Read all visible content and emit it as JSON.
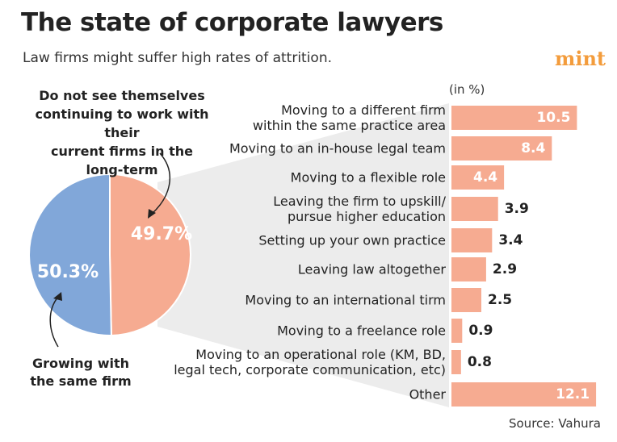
{
  "title": "The state of corporate lawyers",
  "subtitle": "Law firms might suffer high rates of attrition.",
  "logo": "mint",
  "source": "Source: Vahura",
  "chart_data": [
    {
      "type": "pie",
      "categories": [
        "Do not see themselves\ncontinuing to work with their\ncurrent firms in the\nlong-term",
        "Growing with\nthe same firm"
      ],
      "values": [
        49.7,
        50.3
      ],
      "value_labels": [
        "49.7%",
        "50.3%"
      ],
      "colors": [
        "#f6ab91",
        "#81a7d9"
      ]
    },
    {
      "type": "bar",
      "orientation": "horizontal",
      "unit": "(in %)",
      "categories": [
        "Moving to a different firm\nwithin the same practice area",
        "Moving to an in-house legal team",
        "Moving to a flexible role",
        "Leaving the firm to upskill/\npursue higher education",
        "Setting up your own practice",
        "Leaving law altogether",
        "Moving to an international tirm",
        "Moving to a freelance role",
        "Moving to an operational role (KM, BD,\nlegal tech, corporate communication, etc)",
        "Other"
      ],
      "values": [
        10.5,
        8.4,
        4.4,
        3.9,
        3.4,
        2.9,
        2.5,
        0.9,
        0.8,
        12.1
      ],
      "color": "#f6ab91"
    }
  ]
}
